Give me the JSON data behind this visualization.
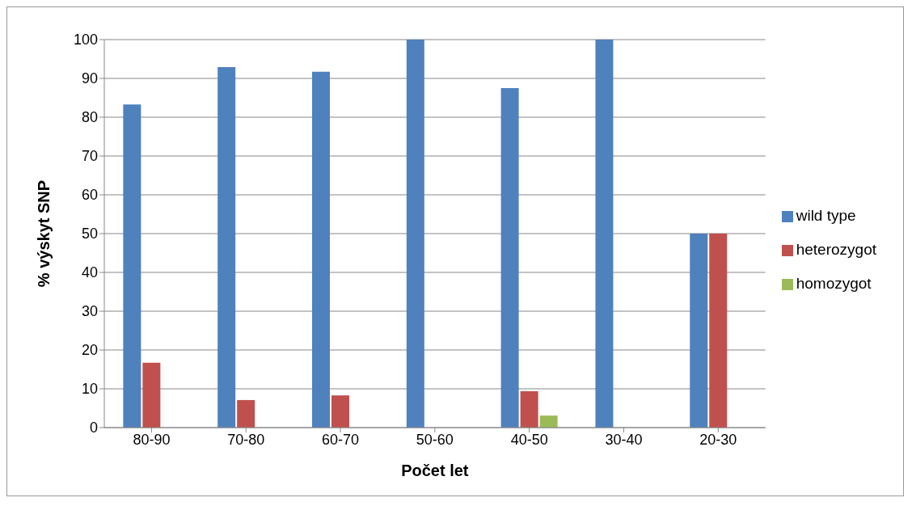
{
  "chart_data": {
    "type": "bar",
    "xlabel": "Počet let",
    "ylabel": "% výskyt SNP",
    "categories": [
      "80-90",
      "70-80",
      "60-70",
      "50-60",
      "40-50",
      "30-40",
      "20-30"
    ],
    "series": [
      {
        "name": "wild type",
        "color": "#4f81bd",
        "values": [
          83.3,
          92.9,
          91.7,
          100,
          87.5,
          100,
          50
        ]
      },
      {
        "name": "heterozygot",
        "color": "#c0504d",
        "values": [
          16.7,
          7.1,
          8.3,
          0,
          9.4,
          0,
          50
        ]
      },
      {
        "name": "homozygot",
        "color": "#9bbb59",
        "values": [
          0,
          0,
          0,
          0,
          3.1,
          0,
          0
        ]
      }
    ],
    "ylim": [
      0,
      100
    ],
    "yticks": [
      0,
      10,
      20,
      30,
      40,
      50,
      60,
      70,
      80,
      90,
      100
    ],
    "grid": "y",
    "legend": "right"
  }
}
